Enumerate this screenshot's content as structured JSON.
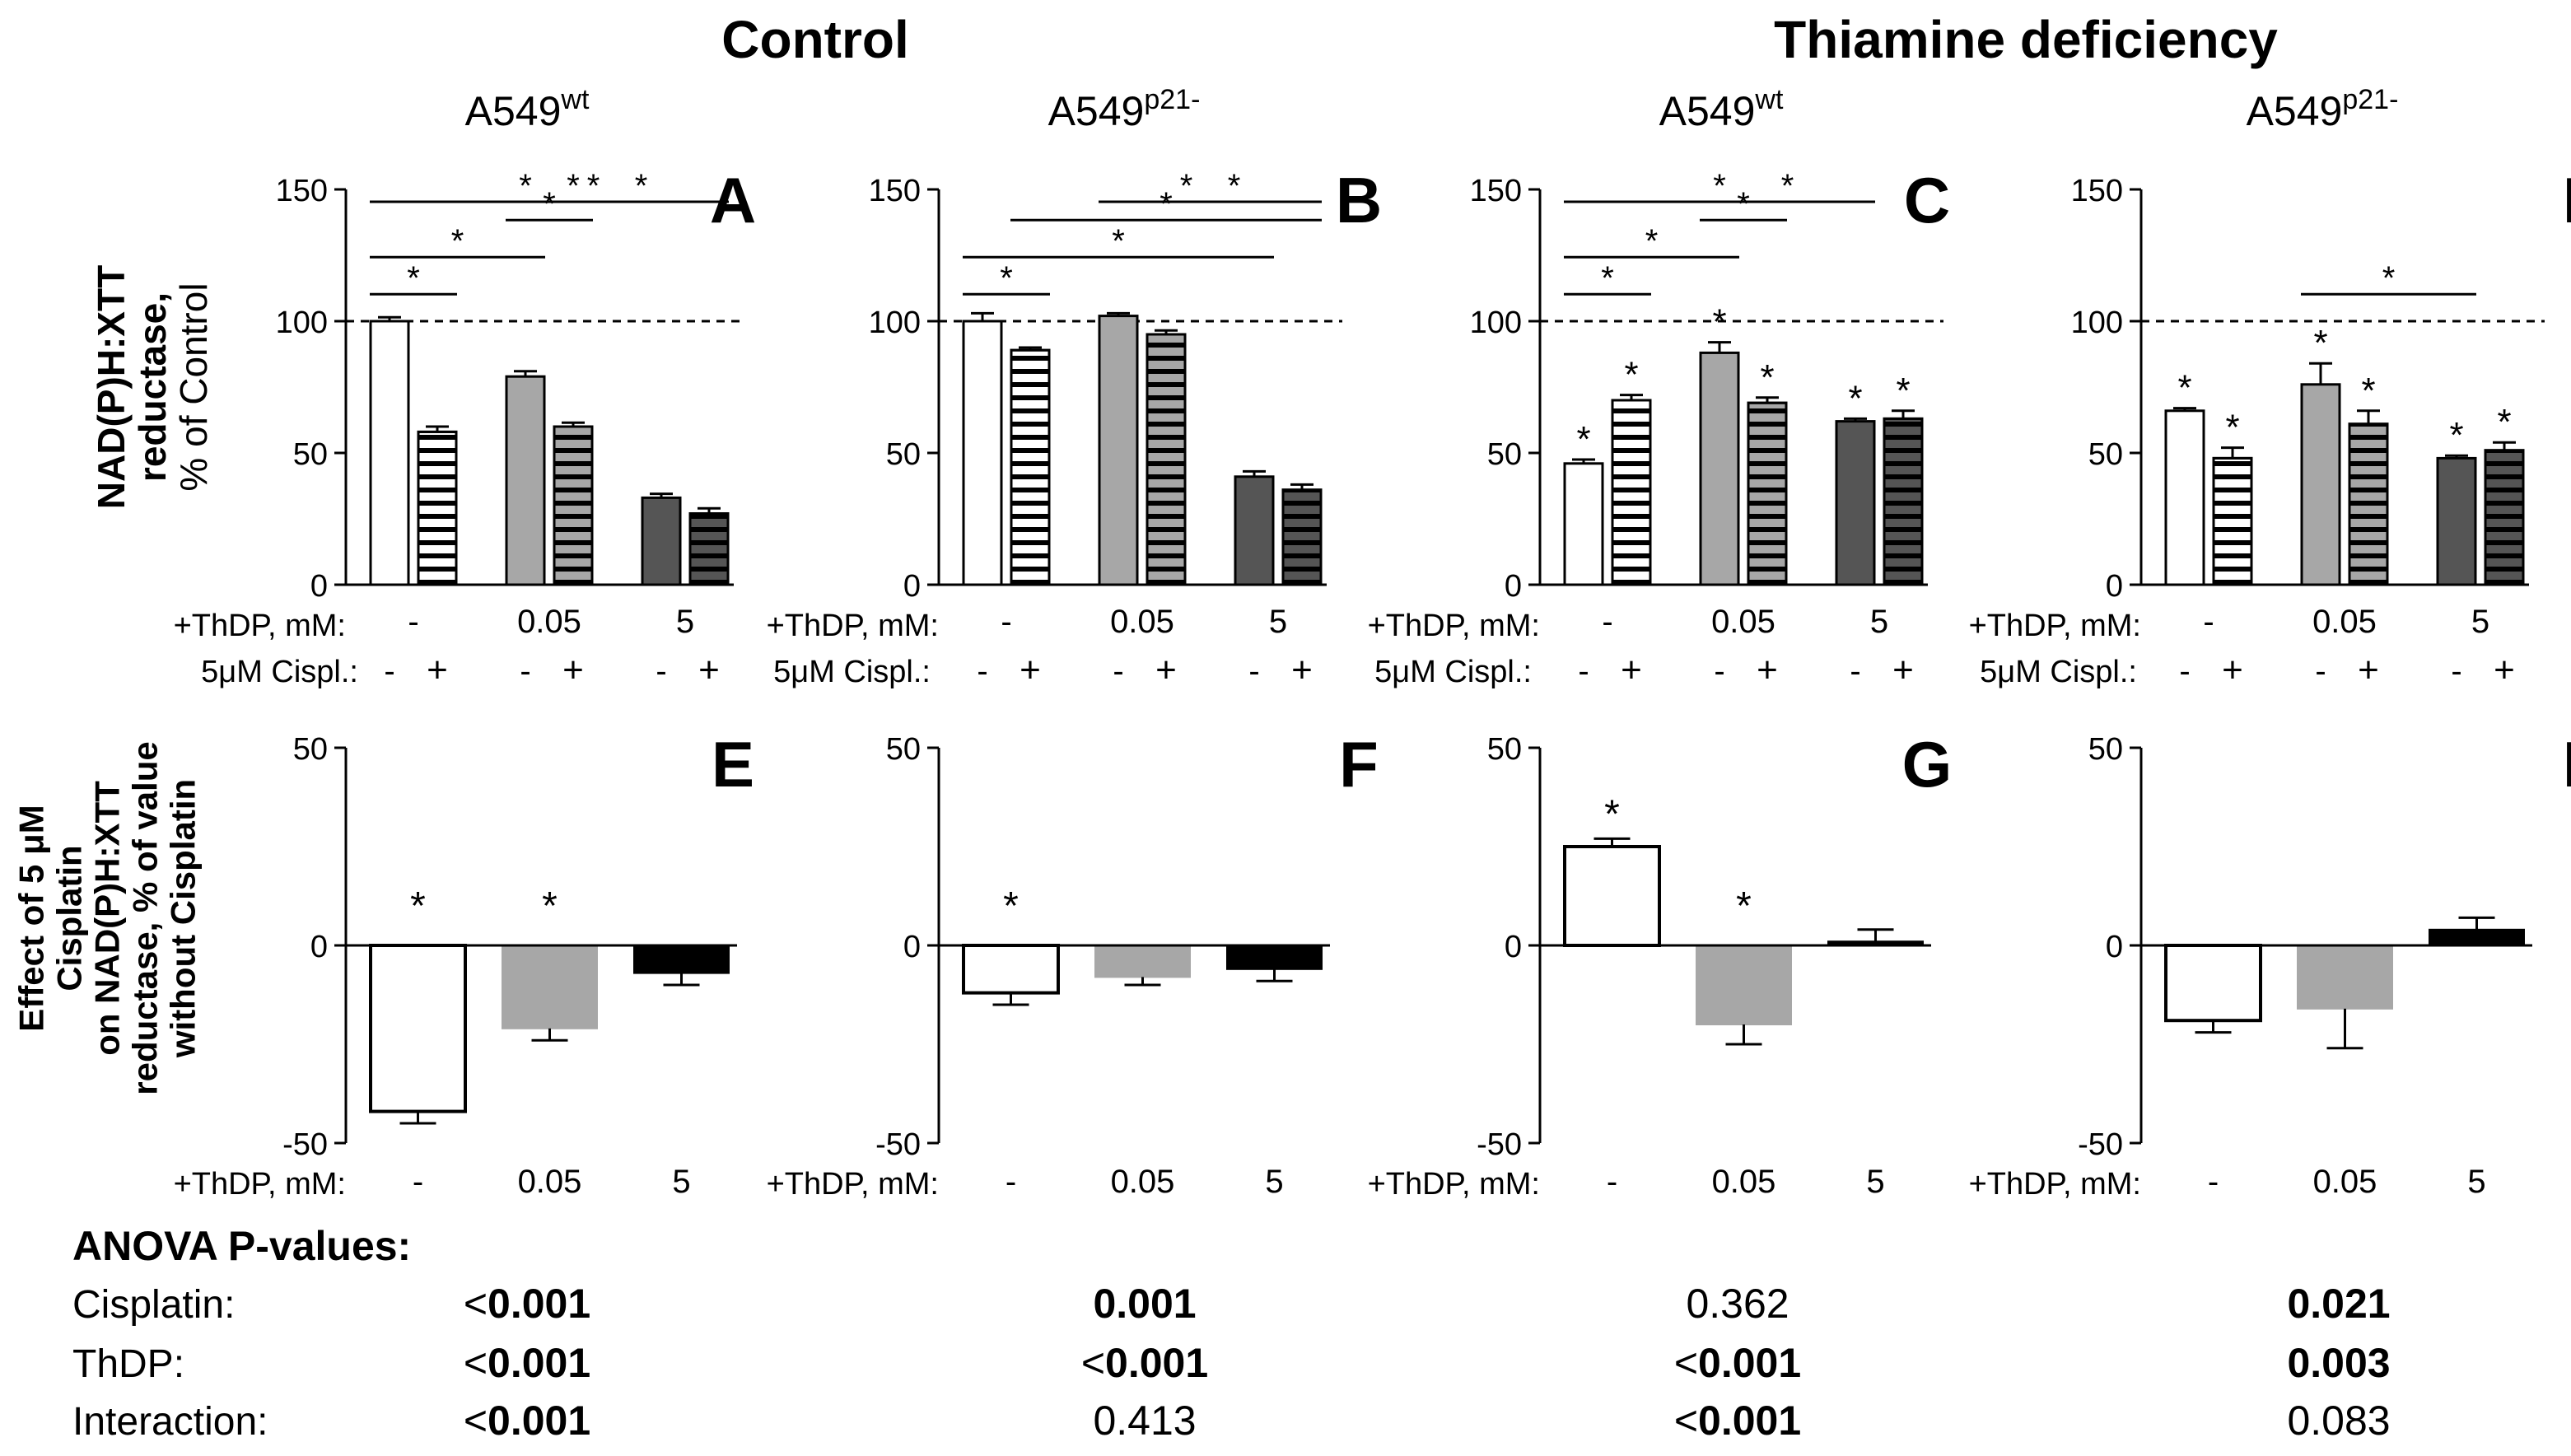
{
  "headings": {
    "control": "Control",
    "deficiency": "Thiamine deficiency",
    "cells": [
      {
        "base": "A549",
        "sup": "wt"
      },
      {
        "base": "A549",
        "sup": "p21-"
      },
      {
        "base": "A549",
        "sup": "wt"
      },
      {
        "base": "A549",
        "sup": "p21-"
      }
    ]
  },
  "row_labels": {
    "top": [
      "NAD(P)H:XTT",
      "reductase,",
      "% of Control"
    ],
    "bottom": [
      "Effect of 5 μM",
      "Cisplatin",
      "on NAD(P)H:XTT",
      "reductase, % of value",
      "without Cisplatin"
    ]
  },
  "axis_text": {
    "thdp": "+ThDP, mM:",
    "cispl": "5μM Cispl.:",
    "dose_labels": [
      "-",
      "0.05",
      "5"
    ],
    "minus": "-",
    "plus": "+",
    "star": "*"
  },
  "colors": {
    "dose_fill_top": [
      "#ffffff",
      "#a7a7a7",
      "#555555"
    ],
    "dose_fill_bottom": [
      "#ffffff",
      "#a7a7a7",
      "#000000"
    ],
    "stripe": "#ffffff",
    "line": "#000000"
  },
  "chart_data": [
    {
      "panel": "A",
      "type": "bar",
      "ylim": [
        0,
        150
      ],
      "yticks": [
        0,
        50,
        100,
        150
      ],
      "reference_line": 100,
      "categories": [
        "- / -",
        "- / +",
        "0.05 / -",
        "0.05 / +",
        "5 / -",
        "5 / +"
      ],
      "values": [
        100,
        58,
        79,
        60,
        33,
        27
      ],
      "errors": [
        1.5,
        2,
        2,
        1.5,
        1.5,
        2
      ],
      "bar_stars": [
        false,
        false,
        false,
        false,
        false,
        false
      ],
      "brackets": [
        [
          0,
          1
        ],
        [
          0,
          2
        ],
        [
          2,
          3
        ],
        [
          0,
          4
        ],
        [
          1,
          5
        ],
        [
          2,
          4
        ],
        [
          3,
          5
        ]
      ]
    },
    {
      "panel": "B",
      "type": "bar",
      "ylim": [
        0,
        150
      ],
      "yticks": [
        0,
        50,
        100,
        150
      ],
      "reference_line": 100,
      "categories": [
        "- / -",
        "- / +",
        "0.05 / -",
        "0.05 / +",
        "5 / -",
        "5 / +"
      ],
      "values": [
        100,
        89,
        102,
        95,
        41,
        36
      ],
      "errors": [
        3,
        1,
        1,
        1.5,
        2,
        2
      ],
      "bar_stars": [
        false,
        false,
        false,
        false,
        false,
        false
      ],
      "brackets": [
        [
          0,
          1
        ],
        [
          0,
          4
        ],
        [
          1,
          5
        ],
        [
          2,
          4
        ],
        [
          3,
          5
        ]
      ]
    },
    {
      "panel": "C",
      "type": "bar",
      "ylim": [
        0,
        150
      ],
      "yticks": [
        0,
        50,
        100,
        150
      ],
      "reference_line": 100,
      "categories": [
        "- / -",
        "- / +",
        "0.05 / -",
        "0.05 / +",
        "5 / -",
        "5 / +"
      ],
      "values": [
        46,
        70,
        88,
        69,
        62,
        63
      ],
      "errors": [
        1.5,
        2,
        4,
        2,
        1,
        3
      ],
      "bar_stars": [
        true,
        true,
        true,
        true,
        true,
        true
      ],
      "brackets": [
        [
          0,
          1
        ],
        [
          0,
          2
        ],
        [
          2,
          3
        ],
        [
          0,
          4
        ],
        [
          2,
          4
        ]
      ]
    },
    {
      "panel": "D",
      "type": "bar",
      "ylim": [
        0,
        150
      ],
      "yticks": [
        0,
        50,
        100,
        150
      ],
      "reference_line": 100,
      "categories": [
        "- / -",
        "- / +",
        "0.05 / -",
        "0.05 / +",
        "5 / -",
        "5 / +"
      ],
      "values": [
        66,
        48,
        76,
        61,
        48,
        51
      ],
      "errors": [
        1,
        4,
        8,
        5,
        1,
        3
      ],
      "bar_stars": [
        true,
        true,
        true,
        true,
        true,
        true
      ],
      "brackets": [
        [
          2,
          4
        ]
      ]
    },
    {
      "panel": "E",
      "type": "bar",
      "ylim": [
        -50,
        50
      ],
      "yticks": [
        -50,
        0,
        50
      ],
      "categories": [
        "-",
        "0.05",
        "5"
      ],
      "values": [
        -42,
        -21,
        -7
      ],
      "errors": [
        3,
        3,
        3
      ],
      "bar_stars": [
        true,
        true,
        false
      ]
    },
    {
      "panel": "F",
      "type": "bar",
      "ylim": [
        -50,
        50
      ],
      "yticks": [
        -50,
        0,
        50
      ],
      "categories": [
        "-",
        "0.05",
        "5"
      ],
      "values": [
        -12,
        -8,
        -6
      ],
      "errors": [
        3,
        2,
        3
      ],
      "bar_stars": [
        true,
        false,
        false
      ]
    },
    {
      "panel": "G",
      "type": "bar",
      "ylim": [
        -50,
        50
      ],
      "yticks": [
        -50,
        0,
        50
      ],
      "categories": [
        "-",
        "0.05",
        "5"
      ],
      "values": [
        25,
        -20,
        1
      ],
      "errors": [
        2,
        5,
        3
      ],
      "bar_stars": [
        true,
        true,
        false
      ]
    },
    {
      "panel": "H",
      "type": "bar",
      "ylim": [
        -50,
        50
      ],
      "yticks": [
        -50,
        0,
        50
      ],
      "categories": [
        "-",
        "0.05",
        "5"
      ],
      "values": [
        -19,
        -16,
        4
      ],
      "errors": [
        3,
        10,
        3
      ],
      "bar_stars": [
        false,
        false,
        false
      ]
    }
  ],
  "anova": {
    "title": "ANOVA P-values:",
    "rows": [
      {
        "label": "Cisplatin:",
        "cells": [
          {
            "prefix": "<",
            "value": "0.001",
            "bold": true
          },
          {
            "prefix": "",
            "value": "0.001",
            "bold": true
          },
          {
            "prefix": "",
            "value": "0.362",
            "bold": false
          },
          {
            "prefix": "",
            "value": "0.021",
            "bold": true
          }
        ]
      },
      {
        "label": "ThDP:",
        "cells": [
          {
            "prefix": "<",
            "value": "0.001",
            "bold": true
          },
          {
            "prefix": "<",
            "value": "0.001",
            "bold": true
          },
          {
            "prefix": "<",
            "value": "0.001",
            "bold": true
          },
          {
            "prefix": "",
            "value": "0.003",
            "bold": true
          }
        ]
      },
      {
        "label": "Interaction:",
        "cells": [
          {
            "prefix": "<",
            "value": "0.001",
            "bold": true
          },
          {
            "prefix": "",
            "value": "0.413",
            "bold": false
          },
          {
            "prefix": "<",
            "value": "0.001",
            "bold": true
          },
          {
            "prefix": "",
            "value": "0.083",
            "bold": false
          }
        ]
      }
    ]
  }
}
